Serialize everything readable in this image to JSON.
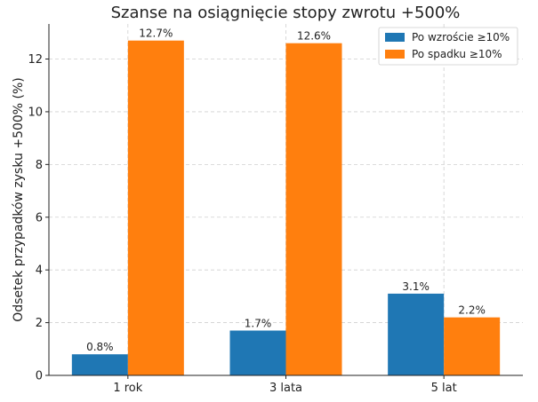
{
  "chart_data": {
    "type": "bar",
    "title": "Szanse na osiągnięcie stopy zwrotu +500%",
    "xlabel": "",
    "ylabel": "Odsetek przypadków zysku +500% (%)",
    "categories": [
      "1 rok",
      "3 lata",
      "5 lat"
    ],
    "series": [
      {
        "name": "Po wzroście ≥10%",
        "values": [
          0.8,
          1.7,
          3.1
        ],
        "labels": [
          "0.8%",
          "1.7%",
          "3.1%"
        ],
        "color": "#1f77b4"
      },
      {
        "name": "Po spadku ≥10%",
        "values": [
          12.7,
          12.6,
          2.2
        ],
        "labels": [
          "12.7%",
          "12.6%",
          "2.2%"
        ],
        "color": "#ff7f0e"
      }
    ],
    "ylim": [
      0,
      13.33
    ],
    "yticks": [
      0,
      2,
      4,
      6,
      8,
      10,
      12
    ],
    "grid": true,
    "legend": "top-right"
  }
}
